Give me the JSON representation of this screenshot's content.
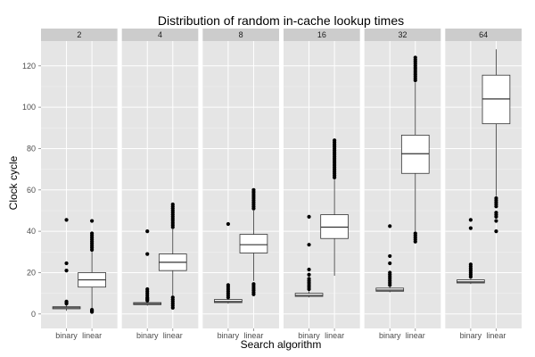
{
  "chart_data": {
    "type": "boxplot",
    "title": "Distribution of random in-cache lookup times",
    "xlabel": "Search algorithm",
    "ylabel": "Clock cycle",
    "ylim": [
      -7,
      132
    ],
    "yticks": [
      0,
      20,
      40,
      60,
      80,
      100,
      120
    ],
    "categories": [
      "binary",
      "linear"
    ],
    "panels": [
      {
        "label": "2",
        "boxes": [
          {
            "category": "binary",
            "q1": 2.5,
            "median": 3,
            "q3": 3.5,
            "whisker_low": 1.5,
            "whisker_high": 4.5,
            "outliers": [
              5,
              5.5,
              6,
              21,
              24.5,
              45.5
            ]
          },
          {
            "category": "linear",
            "q1": 13,
            "median": 16.5,
            "q3": 20,
            "whisker_low": 2.5,
            "whisker_high": 30,
            "outliers": [
              1,
              1.5,
              2,
              31,
              32,
              33,
              34,
              35,
              36,
              37,
              38,
              39,
              45
            ]
          }
        ]
      },
      {
        "label": "4",
        "boxes": [
          {
            "category": "binary",
            "q1": 4.5,
            "median": 5,
            "q3": 5.5,
            "whisker_low": 4,
            "whisker_high": 6,
            "outliers": [
              6.5,
              7,
              7.5,
              8,
              9,
              10,
              11,
              12,
              29,
              40
            ]
          },
          {
            "category": "linear",
            "q1": 21,
            "median": 25,
            "q3": 29,
            "whisker_low": 9,
            "whisker_high": 41,
            "outliers": [
              3,
              4,
              5,
              6,
              7,
              8,
              42,
              43,
              44,
              45,
              46,
              47,
              48,
              49,
              50,
              51,
              52,
              53
            ]
          }
        ]
      },
      {
        "label": "8",
        "boxes": [
          {
            "category": "binary",
            "q1": 5.5,
            "median": 6,
            "q3": 7,
            "whisker_low": 5,
            "whisker_high": 7.5,
            "outliers": [
              8,
              9,
              10,
              11,
              12,
              13,
              14,
              43.5
            ]
          },
          {
            "category": "linear",
            "q1": 29.5,
            "median": 33.5,
            "q3": 38.5,
            "whisker_low": 16,
            "whisker_high": 50,
            "outliers": [
              9.5,
              10.5,
              11.5,
              12.5,
              13.5,
              14.5,
              51,
              52,
              53,
              54,
              55,
              56,
              57,
              58,
              59,
              60
            ]
          }
        ]
      },
      {
        "label": "16",
        "boxes": [
          {
            "category": "binary",
            "q1": 8.5,
            "median": 9,
            "q3": 10,
            "whisker_low": 8,
            "whisker_high": 11,
            "outliers": [
              12,
              13,
              14,
              15,
              16,
              17,
              19,
              21.5,
              33.5,
              47
            ]
          },
          {
            "category": "linear",
            "q1": 36.5,
            "median": 42,
            "q3": 48,
            "whisker_low": 18.5,
            "whisker_high": 65,
            "outliers": [
              66,
              67,
              68,
              69,
              70,
              71,
              72,
              73,
              74,
              75,
              76,
              77,
              78,
              79,
              80,
              81,
              82,
              83,
              84
            ]
          }
        ]
      },
      {
        "label": "32",
        "boxes": [
          {
            "category": "binary",
            "q1": 11,
            "median": 11.5,
            "q3": 12.5,
            "whisker_low": 10.5,
            "whisker_high": 13,
            "outliers": [
              14,
              15,
              16,
              17,
              18,
              19,
              20,
              24.5,
              28,
              42.5
            ]
          },
          {
            "category": "linear",
            "q1": 68,
            "median": 77.5,
            "q3": 86.5,
            "whisker_low": 40,
            "whisker_high": 112,
            "outliers": [
              35,
              36,
              37,
              38,
              39,
              113,
              114,
              115,
              116,
              117,
              118,
              119,
              120,
              121,
              122,
              123,
              124
            ]
          }
        ]
      },
      {
        "label": "64",
        "boxes": [
          {
            "category": "binary",
            "q1": 15,
            "median": 15.5,
            "q3": 16.5,
            "whisker_low": 14.5,
            "whisker_high": 17,
            "outliers": [
              18,
              19,
              20,
              21,
              22,
              23,
              24,
              41.5,
              45.5
            ]
          },
          {
            "category": "linear",
            "q1": 92,
            "median": 104,
            "q3": 115.5,
            "whisker_low": 57,
            "whisker_high": 128,
            "outliers": [
              40,
              45,
              47,
              48,
              49,
              52,
              53,
              54,
              55,
              56
            ]
          }
        ]
      }
    ],
    "grid": true,
    "colors": {
      "panel_bg": "#e5e5e5",
      "grid_major": "#ffffff",
      "grid_minor": "#f2f2f2",
      "strip_bg": "#cccccc",
      "box_fill": "#ffffff",
      "box_stroke": "#333333",
      "point": "#000000"
    }
  }
}
